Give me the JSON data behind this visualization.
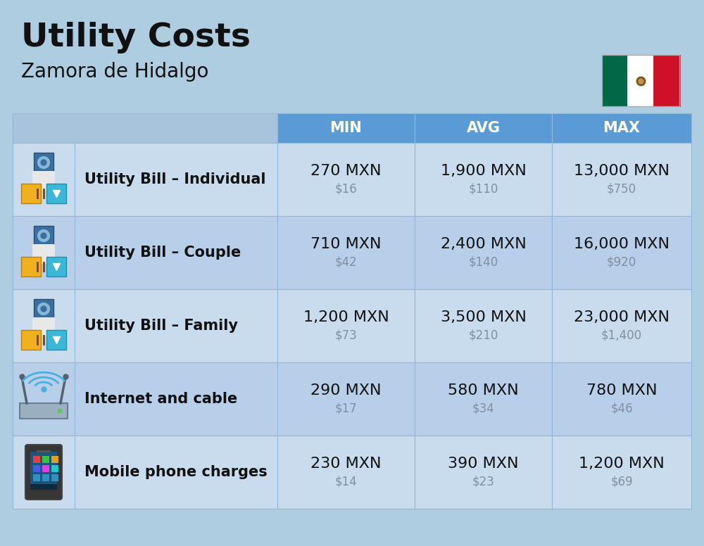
{
  "title": "Utility Costs",
  "subtitle": "Zamora de Hidalgo",
  "background_color": "#aecde0",
  "header_color": "#5b9bd5",
  "header_text_color": "#ffffff",
  "row_color_odd": "#c8dcee",
  "row_color_even": "#b8cfea",
  "cell_line_color": "#90b8d8",
  "columns": [
    "MIN",
    "AVG",
    "MAX"
  ],
  "rows": [
    {
      "label": "Utility Bill – Individual",
      "icon": "utility",
      "min_mxn": "270 MXN",
      "min_usd": "$16",
      "avg_mxn": "1,900 MXN",
      "avg_usd": "$110",
      "max_mxn": "13,000 MXN",
      "max_usd": "$750"
    },
    {
      "label": "Utility Bill – Couple",
      "icon": "utility",
      "min_mxn": "710 MXN",
      "min_usd": "$42",
      "avg_mxn": "2,400 MXN",
      "avg_usd": "$140",
      "max_mxn": "16,000 MXN",
      "max_usd": "$920"
    },
    {
      "label": "Utility Bill – Family",
      "icon": "utility",
      "min_mxn": "1,200 MXN",
      "min_usd": "$73",
      "avg_mxn": "3,500 MXN",
      "avg_usd": "$210",
      "max_mxn": "23,000 MXN",
      "max_usd": "$1,400"
    },
    {
      "label": "Internet and cable",
      "icon": "internet",
      "min_mxn": "290 MXN",
      "min_usd": "$17",
      "avg_mxn": "580 MXN",
      "avg_usd": "$34",
      "max_mxn": "780 MXN",
      "max_usd": "$46"
    },
    {
      "label": "Mobile phone charges",
      "icon": "mobile",
      "min_mxn": "230 MXN",
      "min_usd": "$14",
      "avg_mxn": "390 MXN",
      "avg_usd": "$23",
      "max_mxn": "1,200 MXN",
      "max_usd": "$69"
    }
  ],
  "title_fontsize": 34,
  "subtitle_fontsize": 20,
  "header_fontsize": 15,
  "label_fontsize": 15,
  "value_fontsize": 16,
  "usd_fontsize": 12,
  "usd_color": "#8090a0",
  "flag_green": "#006847",
  "flag_white": "#FFFFFF",
  "flag_red": "#CE1126"
}
